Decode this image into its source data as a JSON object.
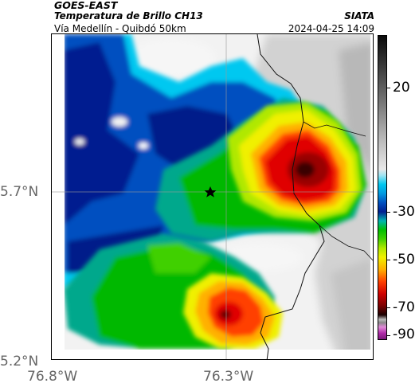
{
  "header": {
    "source": "GOES-EAST",
    "product": "Temperatura de Brillo CH13",
    "region": "Vía Medellín - Quibdó 50km",
    "org": "SIATA",
    "timestamp": "2024-04-25 14:09"
  },
  "axes": {
    "lat_labels": [
      "5.7°N",
      "5.2°N"
    ],
    "lon_labels": [
      "76.8°W",
      "76.3°W"
    ]
  },
  "colorbar": {
    "labels": [
      "20",
      "-30",
      "-50",
      "-70",
      "-90"
    ],
    "values": [
      20,
      -30,
      -50,
      -70,
      -90
    ]
  },
  "map": {
    "marker_icon": "star-icon",
    "colors": {
      "cold_core": "#5a0000",
      "red": "#e00000",
      "orange": "#ff8000",
      "yellow": "#f0f000",
      "green": "#00b800",
      "teal": "#00a88c",
      "blue": "#0040c0",
      "navy": "#001a8a",
      "cyan": "#00c8f0",
      "gray_land": "#c8c8c8",
      "clear": "#f2f2f2"
    }
  }
}
